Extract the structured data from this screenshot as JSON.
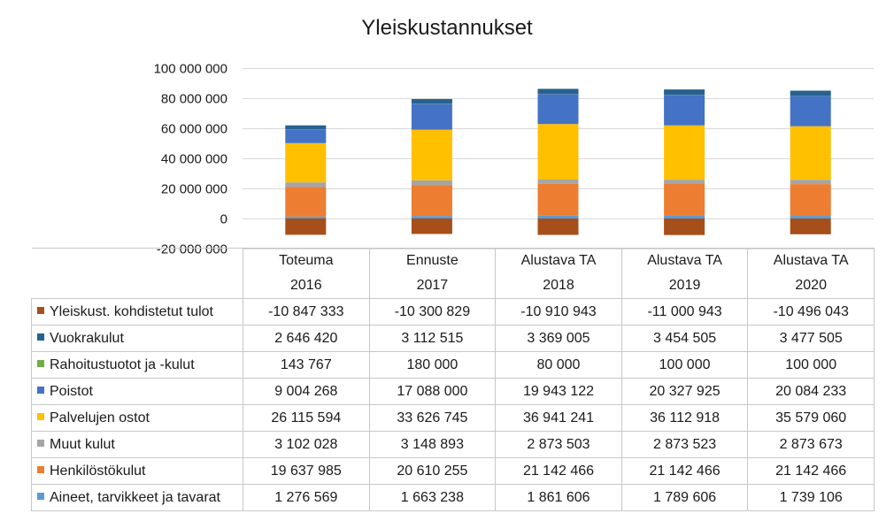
{
  "chart_data": {
    "type": "bar",
    "stacked": true,
    "title": "Yleiskustannukset",
    "categories": [
      {
        "line1": "Toteuma",
        "line2": "2016"
      },
      {
        "line1": "Ennuste",
        "line2": "2017"
      },
      {
        "line1": "Alustava TA",
        "line2": "2018"
      },
      {
        "line1": "Alustava TA",
        "line2": "2019"
      },
      {
        "line1": "Alustava TA",
        "line2": "2020"
      }
    ],
    "ylim": [
      -20000000,
      100000000
    ],
    "yticks": [
      {
        "value": 100000000,
        "label": "100 000 000"
      },
      {
        "value": 80000000,
        "label": "80 000 000"
      },
      {
        "value": 60000000,
        "label": "60 000 000"
      },
      {
        "value": 40000000,
        "label": "40 000 000"
      },
      {
        "value": 20000000,
        "label": "20 000 000"
      },
      {
        "value": 0,
        "label": "0"
      },
      {
        "value": -20000000,
        "label": "-20 000 000"
      }
    ],
    "grid": true,
    "legend": "data-table",
    "series": [
      {
        "name": "Yleiskust. kohdistetut tulot",
        "color": "#a64f1a",
        "values": [
          -10847333,
          -10300829,
          -10910943,
          -11000943,
          -10496043
        ],
        "labels": [
          "-10 847 333",
          "-10 300 829",
          "-10 910 943",
          "-11 000 943",
          "-10 496 043"
        ]
      },
      {
        "name": "Vuokrakulut",
        "color": "#27618f",
        "values": [
          2646420,
          3112515,
          3369005,
          3454505,
          3477505
        ],
        "labels": [
          "2 646 420",
          "3 112 515",
          "3 369 005",
          "3 454 505",
          "3 477 505"
        ]
      },
      {
        "name": "Rahoitustuotot ja -kulut",
        "color": "#70ad47",
        "values": [
          143767,
          180000,
          80000,
          100000,
          100000
        ],
        "labels": [
          "143 767",
          "180 000",
          "80 000",
          "100 000",
          "100 000"
        ]
      },
      {
        "name": "Poistot",
        "color": "#4472c4",
        "values": [
          9004268,
          17088000,
          19943122,
          20327925,
          20084233
        ],
        "labels": [
          "9 004 268",
          "17 088 000",
          "19 943 122",
          "20 327 925",
          "20 084 233"
        ]
      },
      {
        "name": "Palvelujen ostot",
        "color": "#ffc000",
        "values": [
          26115594,
          33626745,
          36941241,
          36112918,
          35579060
        ],
        "labels": [
          "26 115 594",
          "33 626 745",
          "36 941 241",
          "36 112 918",
          "35 579 060"
        ]
      },
      {
        "name": "Muut kulut",
        "color": "#a5a5a5",
        "values": [
          3102028,
          3148893,
          2873503,
          2873523,
          2873673
        ],
        "labels": [
          "3 102 028",
          "3 148 893",
          "2 873 503",
          "2 873 523",
          "2 873 673"
        ]
      },
      {
        "name": "Henkilöstökulut",
        "color": "#ed7d31",
        "values": [
          19637985,
          20610255,
          21142466,
          21142466,
          21142466
        ],
        "labels": [
          "19 637 985",
          "20 610 255",
          "21 142 466",
          "21 142 466",
          "21 142 466"
        ]
      },
      {
        "name": "Aineet, tarvikkeet ja tavarat",
        "color": "#5b9bd5",
        "values": [
          1276569,
          1663238,
          1861606,
          1789606,
          1739106
        ],
        "labels": [
          "1 276 569",
          "1 663 238",
          "1 861 606",
          "1 789 606",
          "1 739 106"
        ]
      }
    ]
  }
}
